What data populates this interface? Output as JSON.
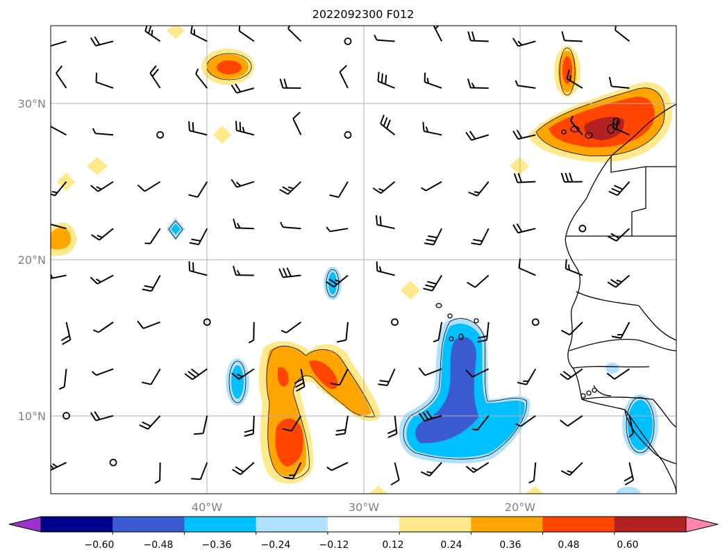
{
  "title": "2022092300 F012",
  "map": {
    "lon_range": [
      -50,
      -10
    ],
    "lat_range": [
      5,
      35
    ],
    "gridlines": true,
    "lon_labels": [
      {
        "lon": -40,
        "text": "40°W"
      },
      {
        "lon": -30,
        "text": "30°W"
      },
      {
        "lon": -20,
        "text": "20°W"
      }
    ],
    "lat_labels": [
      {
        "lat": 30,
        "text": "30°N"
      },
      {
        "lat": 20,
        "text": "20°N"
      },
      {
        "lat": 10,
        "text": "10°N"
      }
    ],
    "grid_color": "#b0b0b0",
    "coastline_color": "#000000"
  },
  "colorbar": {
    "colors": [
      "#9933cc",
      "#00008b",
      "#3a5bd1",
      "#00bfff",
      "#b0e2ff",
      "#ffffff",
      "#ffe98a",
      "#ffa500",
      "#ff4500",
      "#b22222",
      "#ff88aa"
    ],
    "tick_labels": [
      "−0.60",
      "−0.48",
      "−0.36",
      "−0.24",
      "−0.12",
      "0.12",
      "0.24",
      "0.36",
      "0.48",
      "0.60"
    ],
    "extend": "both"
  },
  "barbs": {
    "lon_start": -49,
    "lon_step": 3,
    "lat_start": 34,
    "lat_step": 3,
    "cols": 13,
    "rows": 10
  }
}
